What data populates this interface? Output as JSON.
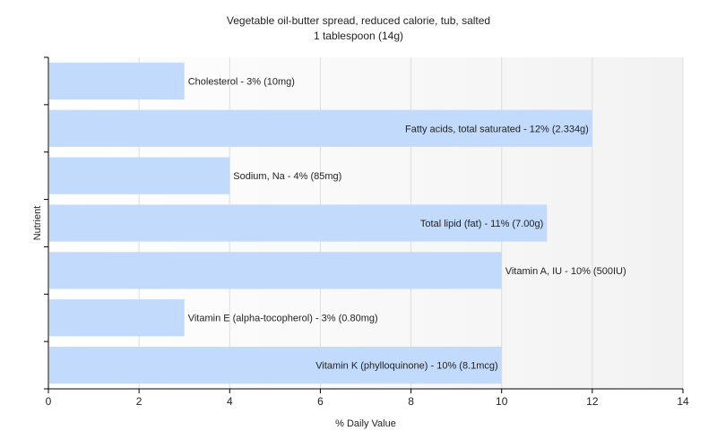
{
  "chart_data": {
    "type": "bar",
    "orientation": "horizontal",
    "title": "Vegetable oil-butter spread, reduced calorie, tub, salted",
    "subtitle": "1 tablespoon (14g)",
    "xlabel": "% Daily Value",
    "ylabel": "Nutrient",
    "xlim": [
      0,
      14
    ],
    "xticks": [
      0,
      2,
      4,
      6,
      8,
      10,
      12,
      14
    ],
    "grid": "vertical",
    "bar_color": "#c2dbfd",
    "categories": [
      "Cholesterol",
      "Fatty acids, total saturated",
      "Sodium, Na",
      "Total lipid (fat)",
      "Vitamin A, IU",
      "Vitamin E (alpha-tocopherol)",
      "Vitamin K (phylloquinone)"
    ],
    "values": [
      3,
      12,
      4,
      11,
      10,
      3,
      10
    ],
    "labels": [
      "Cholesterol - 3% (10mg)",
      "Fatty acids, total saturated - 12% (2.334g)",
      "Sodium, Na - 4% (85mg)",
      "Total lipid (fat) - 11% (7.00g)",
      "Vitamin A, IU - 10% (500IU)",
      "Vitamin E (alpha-tocopherol) - 3% (0.80mg)",
      "Vitamin K (phylloquinone) - 10% (8.1mcg)"
    ]
  }
}
